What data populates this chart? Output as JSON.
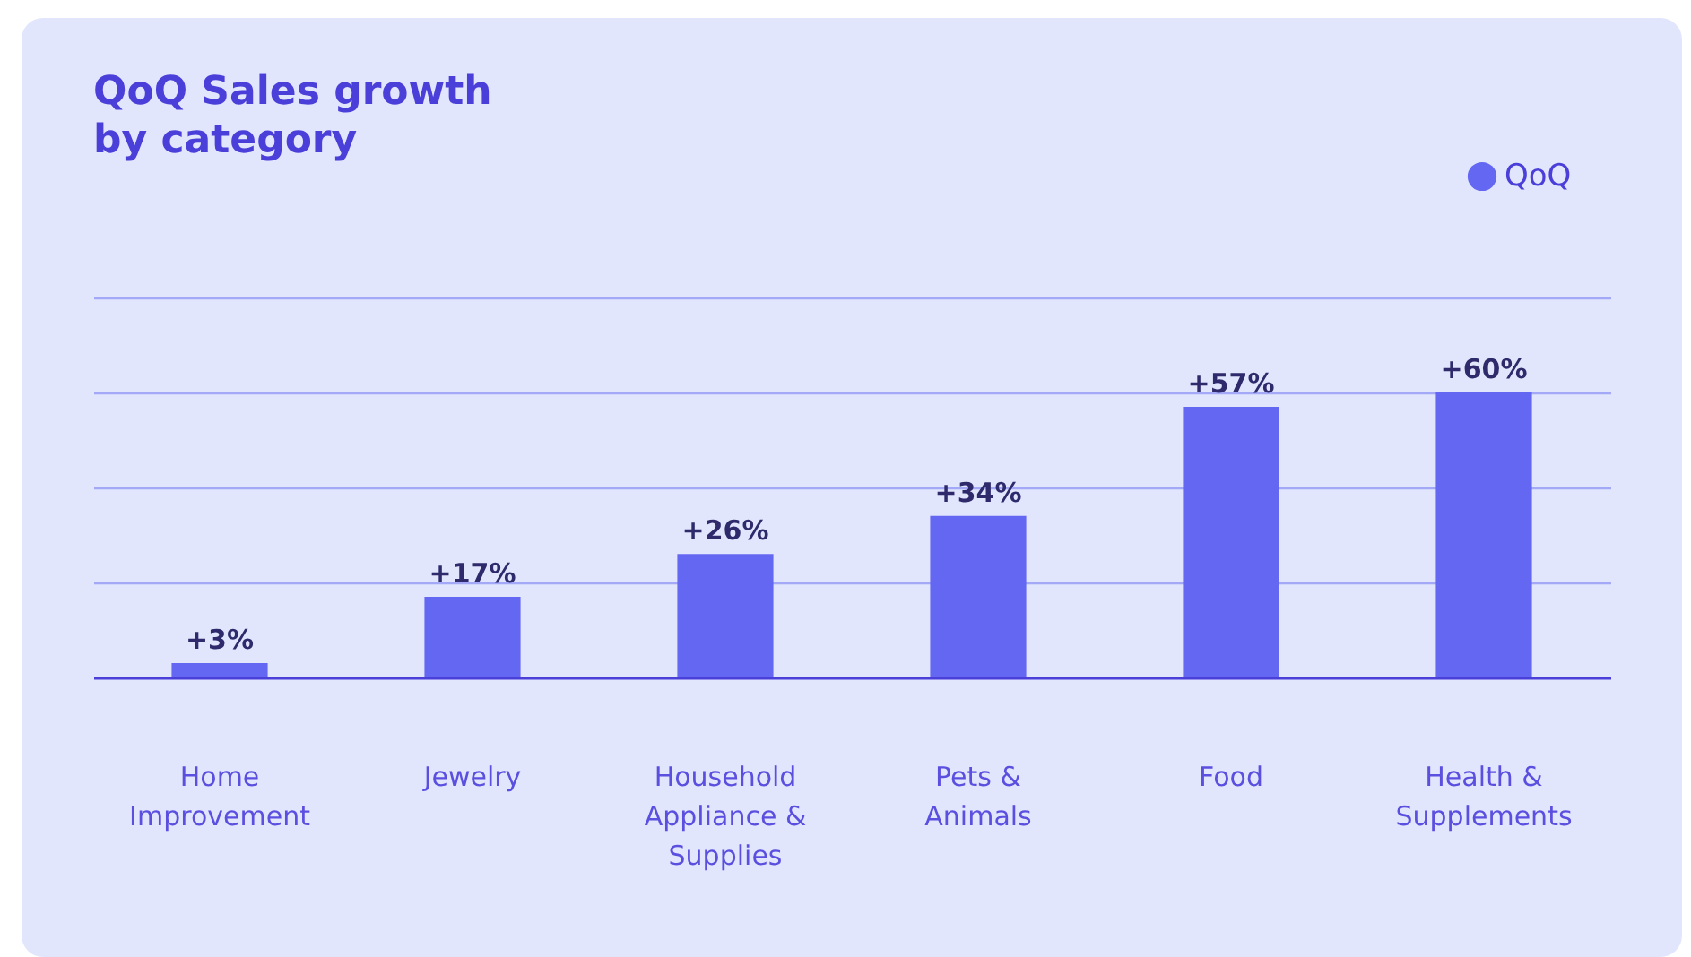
{
  "chart_data": {
    "type": "bar",
    "title": "QoQ Sales growth by category",
    "categories": [
      "Home Improvement",
      "Jewelry",
      "Household Appliance & Supplies",
      "Pets & Animals",
      "Food",
      "Health & Supplements"
    ],
    "series": [
      {
        "name": "QoQ",
        "color": "#6467f2",
        "values": [
          3,
          17,
          26,
          34,
          57,
          60
        ],
        "value_labels": [
          "+3%",
          "+17%",
          "+26%",
          "+34%",
          "+57%",
          "+60%"
        ]
      }
    ],
    "ylim": [
      0,
      80
    ],
    "yticks": [
      {
        "value": 20,
        "label": null
      },
      {
        "value": 40,
        "label": null
      },
      {
        "value": 60,
        "label": null
      },
      {
        "value": 80,
        "label": null
      }
    ],
    "grid": "y",
    "legend": "top right",
    "tick_labels": "x"
  }
}
